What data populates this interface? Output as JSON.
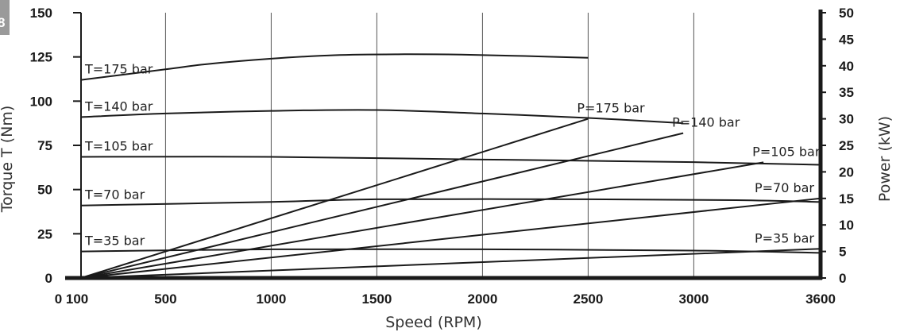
{
  "badge": {
    "text": "8",
    "color": "#9a9a9a"
  },
  "chart_data": {
    "type": "line",
    "xlabel": "Speed (RPM)",
    "ylabel": "Torque T (Nm)",
    "y2label": "Power (kW)",
    "xlim": [
      100,
      3600
    ],
    "ylim": [
      0,
      150
    ],
    "y2lim": [
      0,
      50
    ],
    "x_ticks": [
      {
        "value": 100,
        "label": "0 100"
      },
      {
        "value": 500,
        "label": "500"
      },
      {
        "value": 1000,
        "label": "1000"
      },
      {
        "value": 1500,
        "label": "1500"
      },
      {
        "value": 2000,
        "label": "2000"
      },
      {
        "value": 2500,
        "label": "2500"
      },
      {
        "value": 3000,
        "label": "3000"
      },
      {
        "value": 3600,
        "label": "3600"
      }
    ],
    "y_ticks": [
      0,
      25,
      50,
      75,
      100,
      125,
      150
    ],
    "y2_ticks": [
      0,
      5,
      10,
      15,
      20,
      25,
      30,
      35,
      40,
      45,
      50
    ],
    "grid": "vertical",
    "torque_series": [
      {
        "name": "T=175 bar",
        "axis": "left",
        "x": [
          100,
          500,
          700,
          1000,
          1300,
          1600,
          1900,
          2200,
          2500
        ],
        "y": [
          112,
          118,
          121,
          124,
          126,
          126.5,
          126.3,
          125.5,
          124.5
        ]
      },
      {
        "name": "T=140 bar",
        "axis": "left",
        "x": [
          100,
          500,
          1000,
          1500,
          2000,
          2500,
          2950
        ],
        "y": [
          91,
          93,
          94.5,
          95,
          93,
          90.5,
          87.5
        ]
      },
      {
        "name": "T=105 bar",
        "axis": "left",
        "x": [
          100,
          1000,
          2000,
          3000,
          3600
        ],
        "y": [
          68.5,
          68.5,
          67,
          65.5,
          64
        ]
      },
      {
        "name": "T=70 bar",
        "axis": "left",
        "x": [
          100,
          1000,
          1500,
          2500,
          3200,
          3600
        ],
        "y": [
          41,
          43,
          44.5,
          44.5,
          44,
          43
        ]
      },
      {
        "name": "T=35 bar",
        "axis": "left",
        "x": [
          100,
          1000,
          2000,
          3000,
          3600
        ],
        "y": [
          15,
          16.2,
          16.2,
          15.5,
          14.2
        ]
      }
    ],
    "power_series": [
      {
        "name": "P=175 bar",
        "axis": "right",
        "x": [
          100,
          2500
        ],
        "y": [
          0,
          30
        ]
      },
      {
        "name": "P=140 bar",
        "axis": "right",
        "x": [
          100,
          2950
        ],
        "y": [
          0,
          27.3
        ]
      },
      {
        "name": "P=105 bar",
        "axis": "right",
        "x": [
          100,
          3330
        ],
        "y": [
          0,
          21.8
        ]
      },
      {
        "name": "P=70 bar",
        "axis": "right",
        "x": [
          100,
          3600
        ],
        "y": [
          0,
          15
        ]
      },
      {
        "name": "P=35 bar",
        "axis": "right",
        "x": [
          100,
          3600
        ],
        "y": [
          0,
          5.5
        ]
      }
    ]
  }
}
